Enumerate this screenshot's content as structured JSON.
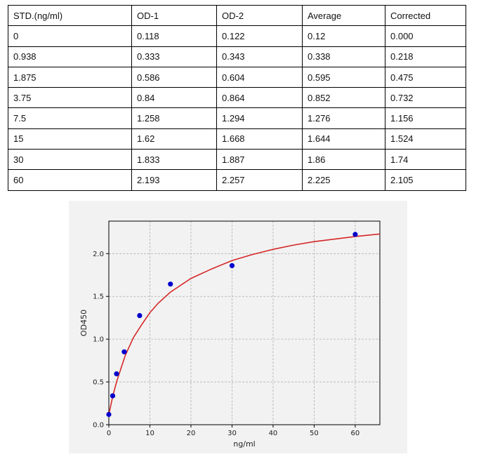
{
  "table": {
    "headers": [
      "STD.(ng/ml)",
      "OD-1",
      "OD-2",
      "Average",
      "Corrected"
    ],
    "rows": [
      [
        "0",
        "0.118",
        "0.122",
        "0.12",
        "0.000"
      ],
      [
        "0.938",
        "0.333",
        "0.343",
        "0.338",
        "0.218"
      ],
      [
        "1.875",
        "0.586",
        "0.604",
        "0.595",
        "0.475"
      ],
      [
        "3.75",
        "0.84",
        "0.864",
        "0.852",
        "0.732"
      ],
      [
        "7.5",
        "1.258",
        "1.294",
        "1.276",
        "1.156"
      ],
      [
        "15",
        "1.62",
        "1.668",
        "1.644",
        "1.524"
      ],
      [
        "30",
        "1.833",
        "1.887",
        "1.86",
        "1.74"
      ],
      [
        "60",
        "2.193",
        "2.257",
        "2.225",
        "2.105"
      ]
    ]
  },
  "chart_data": {
    "type": "scatter",
    "xlabel": "ng/ml",
    "ylabel": "OD450",
    "xlim": [
      0,
      66
    ],
    "ylim": [
      0,
      2.38
    ],
    "xticks": [
      "0",
      "10",
      "20",
      "30",
      "40",
      "50",
      "60"
    ],
    "yticks": [
      "0.0",
      "0.5",
      "1.0",
      "1.5",
      "2.0"
    ],
    "grid": true,
    "points": {
      "x": [
        0,
        0.938,
        1.875,
        3.75,
        7.5,
        15,
        30,
        60
      ],
      "y": [
        0.12,
        0.338,
        0.595,
        0.852,
        1.276,
        1.644,
        1.86,
        2.225
      ]
    },
    "fit_curve": {
      "x": [
        0,
        1,
        2,
        4,
        6,
        8,
        10,
        12,
        15,
        20,
        25,
        30,
        35,
        40,
        45,
        50,
        55,
        60,
        66
      ],
      "y": [
        0.12,
        0.34,
        0.52,
        0.81,
        1.02,
        1.17,
        1.31,
        1.42,
        1.55,
        1.71,
        1.82,
        1.92,
        1.99,
        2.05,
        2.1,
        2.14,
        2.17,
        2.2,
        2.23
      ]
    },
    "colors": {
      "points": "#0000cc",
      "curve": "#d62728",
      "grid": "#b0b0b0"
    }
  }
}
